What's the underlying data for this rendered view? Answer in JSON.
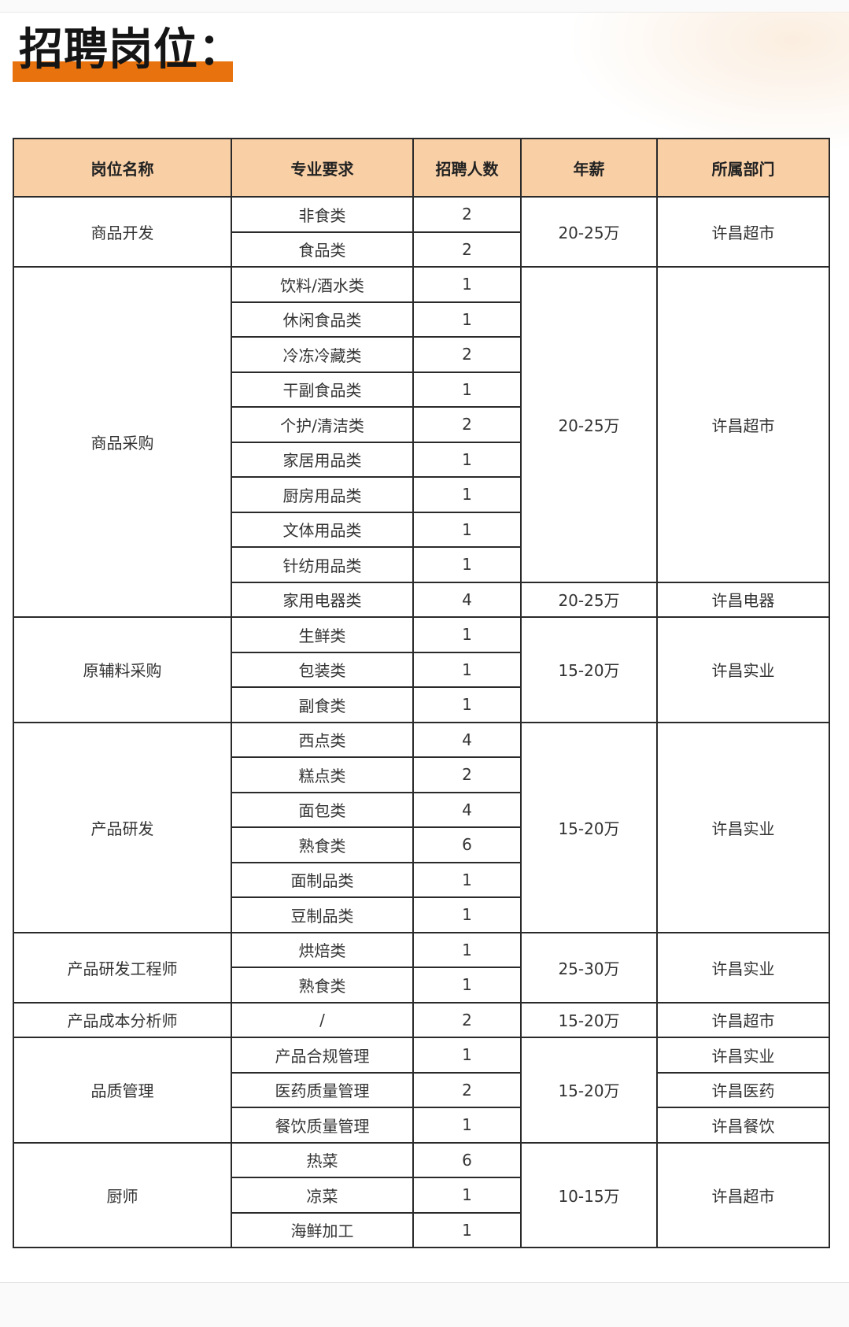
{
  "title": "招聘岗位：",
  "colors": {
    "accent": "#e8730e",
    "header_bg": "#f9d0a6"
  },
  "table": {
    "headers": [
      "岗位名称",
      "专业要求",
      "招聘人数",
      "年薪",
      "所属部门"
    ],
    "groups": [
      {
        "name": "商品开发",
        "rows": [
          {
            "spec": "非食类",
            "count": "2"
          },
          {
            "spec": "食品类",
            "count": "2"
          }
        ],
        "salary": [
          {
            "value": "20-25万",
            "rows": 2
          }
        ],
        "department": [
          {
            "value": "许昌超市",
            "rows": 2
          }
        ]
      },
      {
        "name": "商品采购",
        "rows": [
          {
            "spec": "饮料/酒水类",
            "count": "1"
          },
          {
            "spec": "休闲食品类",
            "count": "1"
          },
          {
            "spec": "冷冻冷藏类",
            "count": "2"
          },
          {
            "spec": "干副食品类",
            "count": "1"
          },
          {
            "spec": "个护/清洁类",
            "count": "2"
          },
          {
            "spec": "家居用品类",
            "count": "1"
          },
          {
            "spec": "厨房用品类",
            "count": "1"
          },
          {
            "spec": "文体用品类",
            "count": "1"
          },
          {
            "spec": "针纺用品类",
            "count": "1"
          },
          {
            "spec": "家用电器类",
            "count": "4"
          }
        ],
        "salary": [
          {
            "value": "20-25万",
            "rows": 9
          },
          {
            "value": "20-25万",
            "rows": 1
          }
        ],
        "department": [
          {
            "value": "许昌超市",
            "rows": 9
          },
          {
            "value": "许昌电器",
            "rows": 1
          }
        ]
      },
      {
        "name": "原辅料采购",
        "rows": [
          {
            "spec": "生鲜类",
            "count": "1"
          },
          {
            "spec": "包装类",
            "count": "1"
          },
          {
            "spec": "副食类",
            "count": "1"
          }
        ],
        "salary": [
          {
            "value": "15-20万",
            "rows": 3
          }
        ],
        "department": [
          {
            "value": "许昌实业",
            "rows": 3
          }
        ]
      },
      {
        "name": "产品研发",
        "rows": [
          {
            "spec": "西点类",
            "count": "4"
          },
          {
            "spec": "糕点类",
            "count": "2"
          },
          {
            "spec": "面包类",
            "count": "4"
          },
          {
            "spec": "熟食类",
            "count": "6"
          },
          {
            "spec": "面制品类",
            "count": "1"
          },
          {
            "spec": "豆制品类",
            "count": "1"
          }
        ],
        "salary": [
          {
            "value": "15-20万",
            "rows": 6
          }
        ],
        "department": [
          {
            "value": "许昌实业",
            "rows": 6
          }
        ]
      },
      {
        "name": "产品研发工程师",
        "rows": [
          {
            "spec": "烘焙类",
            "count": "1"
          },
          {
            "spec": "熟食类",
            "count": "1"
          }
        ],
        "salary": [
          {
            "value": "25-30万",
            "rows": 2
          }
        ],
        "department": [
          {
            "value": "许昌实业",
            "rows": 2
          }
        ]
      },
      {
        "name": "产品成本分析师",
        "rows": [
          {
            "spec": "/",
            "count": "2"
          }
        ],
        "salary": [
          {
            "value": "15-20万",
            "rows": 1
          }
        ],
        "department": [
          {
            "value": "许昌超市",
            "rows": 1
          }
        ]
      },
      {
        "name": "品质管理",
        "rows": [
          {
            "spec": "产品合规管理",
            "count": "1"
          },
          {
            "spec": "医药质量管理",
            "count": "2"
          },
          {
            "spec": "餐饮质量管理",
            "count": "1"
          }
        ],
        "salary": [
          {
            "value": "15-20万",
            "rows": 3
          }
        ],
        "department": [
          {
            "value": "许昌实业",
            "rows": 1
          },
          {
            "value": "许昌医药",
            "rows": 1
          },
          {
            "value": "许昌餐饮",
            "rows": 1
          }
        ]
      },
      {
        "name": "厨师",
        "rows": [
          {
            "spec": "热菜",
            "count": "6"
          },
          {
            "spec": "凉菜",
            "count": "1"
          },
          {
            "spec": "海鲜加工",
            "count": "1"
          }
        ],
        "salary": [
          {
            "value": "10-15万",
            "rows": 3
          }
        ],
        "department": [
          {
            "value": "许昌超市",
            "rows": 3
          }
        ]
      }
    ]
  }
}
